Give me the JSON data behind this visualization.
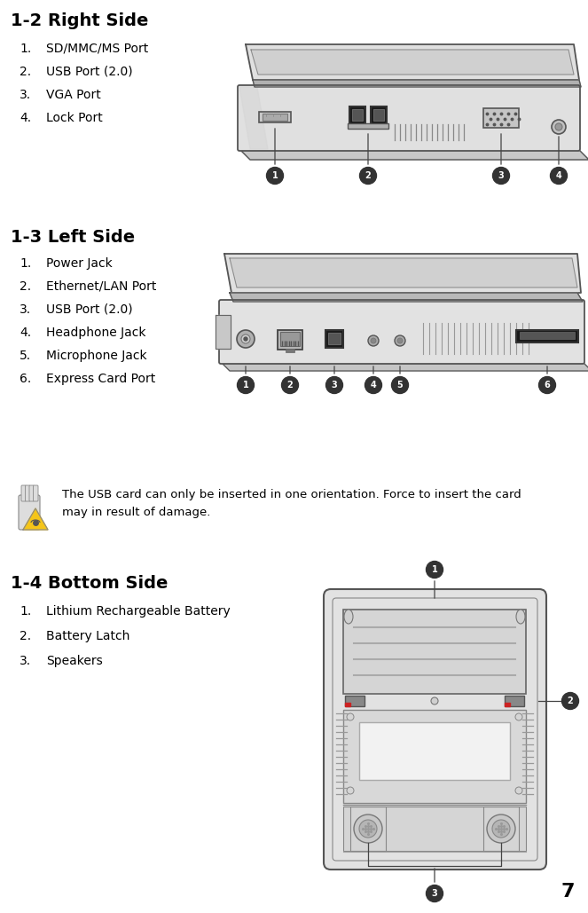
{
  "bg_color": "#ffffff",
  "title_color": "#000000",
  "text_color": "#000000",
  "section1_title": "1-2 Right Side",
  "section1_items": [
    [
      "1.",
      "SD/MMC/MS Port"
    ],
    [
      "2.",
      "USB Port (2.0)"
    ],
    [
      "3.",
      "VGA Port"
    ],
    [
      "4.",
      "Lock Port"
    ]
  ],
  "section2_title": "1-3 Left Side",
  "section2_items": [
    [
      "1.",
      "Power Jack"
    ],
    [
      "2.",
      "Ethernet/LAN Port"
    ],
    [
      "3.",
      "USB Port (2.0)"
    ],
    [
      "4.",
      "Headphone Jack"
    ],
    [
      "5.",
      "Microphone Jack"
    ],
    [
      "6.",
      "Express Card Port"
    ]
  ],
  "warning_text1": "The USB card can only be inserted in one orientation. Force to insert the card",
  "warning_text2": "may in result of damage.",
  "section3_title": "1-4 Bottom Side",
  "section3_items": [
    [
      "1.",
      "Lithium Rechargeable Battery"
    ],
    [
      "2.",
      "Battery Latch"
    ],
    [
      "3.",
      "Speakers"
    ]
  ],
  "page_number": "7",
  "circle_color": "#333333",
  "circle_text_color": "#ffffff",
  "line_color": "#444444",
  "body_color": "#e8e8e8",
  "body_edge": "#555555",
  "port_dark": "#222222",
  "port_mid": "#999999",
  "port_light": "#cccccc",
  "warning_tri": "#f5c518",
  "warning_hand": "#cccccc"
}
